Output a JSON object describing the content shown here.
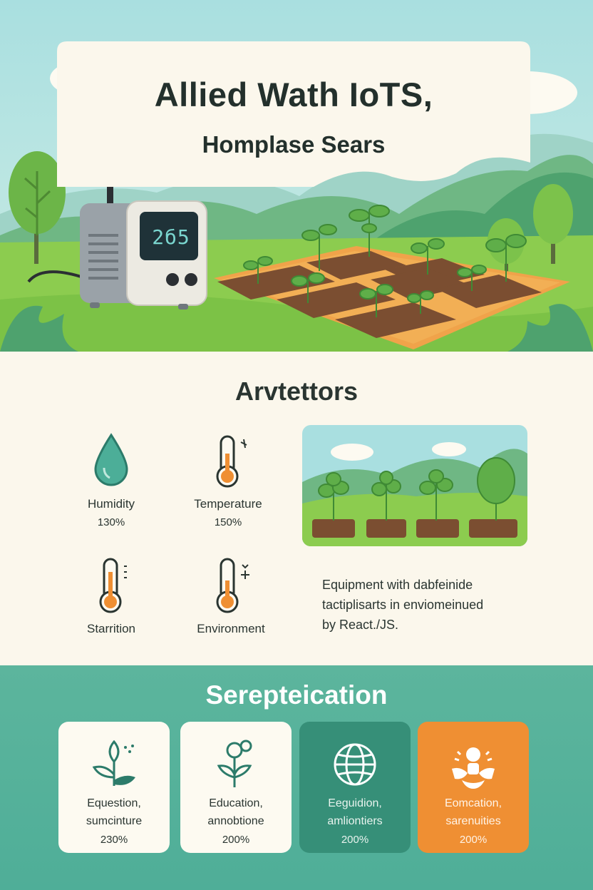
{
  "hero": {
    "title": "Allied Wath IoTS,",
    "subtitle": "Homplase Sears",
    "device_readout": "2б5"
  },
  "metrics_section": {
    "heading": "Arvtettors",
    "items": [
      {
        "label": "Humidity",
        "value": "130%",
        "icon": "water-drop-icon"
      },
      {
        "label": "Temperature",
        "value": "150%",
        "icon": "thermometer-icon"
      },
      {
        "label": "Starrition",
        "value": "",
        "icon": "thermometer-icon"
      },
      {
        "label": "Environment",
        "value": "",
        "icon": "thermometer-icon"
      }
    ],
    "description": [
      "Equipment with dabfeinide",
      "tactiplisarts in enviomeinued",
      "by React./JS."
    ]
  },
  "applications_section": {
    "heading": "Serepteication",
    "cards": [
      {
        "line1": "Equestion,",
        "line2": "sumcinture",
        "value": "230%",
        "icon": "sprout-icon",
        "background": "#fdfaf1"
      },
      {
        "line1": "Education,",
        "line2": "annobtione",
        "value": "200%",
        "icon": "flower-icon",
        "background": "#fdfaf1"
      },
      {
        "line1": "Eeguidion,",
        "line2": "amliontiers",
        "value": "200%",
        "icon": "globe-icon",
        "background": "#368f78"
      },
      {
        "line1": "Eomcation,",
        "line2": "sarenuities",
        "value": "200%",
        "icon": "people-hands-icon",
        "background": "#ef8f33"
      }
    ]
  },
  "colors": {
    "sky": "#a9dfe0",
    "grass": "#8ccc4f",
    "teal": "#4fae98",
    "accent_orange": "#ef8f33",
    "cream": "#fbf7ec"
  }
}
